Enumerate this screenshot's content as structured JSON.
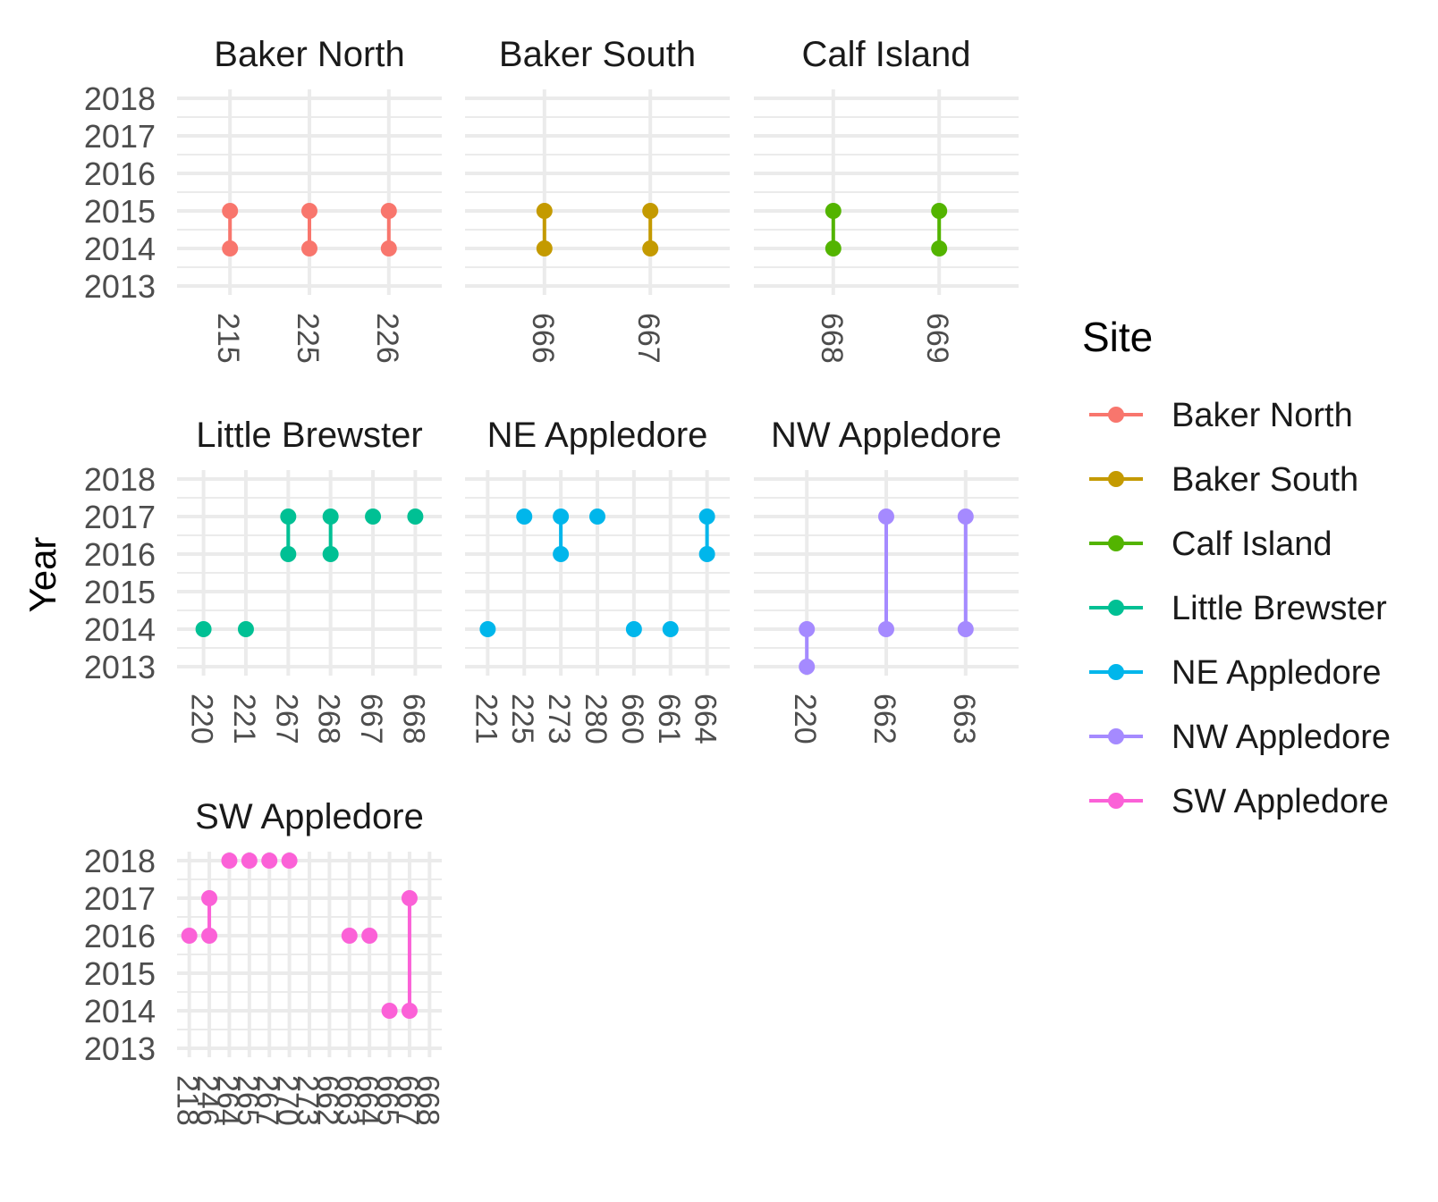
{
  "chart_data": {
    "type": "scatter",
    "ylabel": "Year",
    "legend_title": "Site",
    "legend_position": "right",
    "y_ticks": [
      2013,
      2014,
      2015,
      2016,
      2017,
      2018
    ],
    "ylim": [
      2013,
      2018
    ],
    "grid": true,
    "colors": {
      "Baker North": "#F8766D",
      "Baker South": "#C49A00",
      "Calf Island": "#53B400",
      "Little Brewster": "#00C094",
      "NE Appledore": "#00B6EB",
      "NW Appledore": "#A58AFF",
      "SW Appledore": "#FB61D7"
    },
    "legend": [
      "Baker North",
      "Baker South",
      "Calf Island",
      "Little Brewster",
      "NE Appledore",
      "NW Appledore",
      "SW Appledore"
    ],
    "panels": [
      {
        "title": "Baker North",
        "categories": [
          "215",
          "225",
          "226"
        ],
        "points": [
          [
            "215",
            2014
          ],
          [
            "215",
            2015
          ],
          [
            "225",
            2014
          ],
          [
            "225",
            2015
          ],
          [
            "226",
            2014
          ],
          [
            "226",
            2015
          ]
        ]
      },
      {
        "title": "Baker South",
        "categories": [
          "666",
          "667"
        ],
        "points": [
          [
            "666",
            2014
          ],
          [
            "666",
            2015
          ],
          [
            "667",
            2014
          ],
          [
            "667",
            2015
          ]
        ]
      },
      {
        "title": "Calf Island",
        "categories": [
          "668",
          "669"
        ],
        "points": [
          [
            "668",
            2014
          ],
          [
            "668",
            2015
          ],
          [
            "669",
            2014
          ],
          [
            "669",
            2015
          ]
        ]
      },
      {
        "title": "Little Brewster",
        "categories": [
          "220",
          "221",
          "267",
          "268",
          "667",
          "668"
        ],
        "points": [
          [
            "220",
            2014
          ],
          [
            "221",
            2014
          ],
          [
            "267",
            2016
          ],
          [
            "267",
            2017
          ],
          [
            "268",
            2016
          ],
          [
            "268",
            2017
          ],
          [
            "667",
            2017
          ],
          [
            "668",
            2017
          ]
        ]
      },
      {
        "title": "NE Appledore",
        "categories": [
          "221",
          "225",
          "273",
          "280",
          "660",
          "661",
          "664"
        ],
        "points": [
          [
            "221",
            2014
          ],
          [
            "225",
            2017
          ],
          [
            "273",
            2016
          ],
          [
            "273",
            2017
          ],
          [
            "280",
            2017
          ],
          [
            "660",
            2014
          ],
          [
            "661",
            2014
          ],
          [
            "664",
            2016
          ],
          [
            "664",
            2017
          ]
        ]
      },
      {
        "title": "NW Appledore",
        "categories": [
          "220",
          "662",
          "663"
        ],
        "points": [
          [
            "220",
            2013
          ],
          [
            "220",
            2014
          ],
          [
            "662",
            2014
          ],
          [
            "662",
            2017
          ],
          [
            "663",
            2014
          ],
          [
            "663",
            2017
          ]
        ]
      },
      {
        "title": "SW Appledore",
        "categories": [
          "218",
          "246",
          "264",
          "265",
          "267",
          "270",
          "273",
          "662",
          "663",
          "664",
          "665",
          "667",
          "668"
        ],
        "points": [
          [
            "218",
            2016
          ],
          [
            "246",
            2016
          ],
          [
            "246",
            2017
          ],
          [
            "264",
            2018
          ],
          [
            "265",
            2018
          ],
          [
            "267",
            2018
          ],
          [
            "270",
            2018
          ],
          [
            "663",
            2016
          ],
          [
            "664",
            2016
          ],
          [
            "665",
            2014
          ],
          [
            "667",
            2014
          ],
          [
            "667",
            2017
          ]
        ]
      }
    ]
  }
}
